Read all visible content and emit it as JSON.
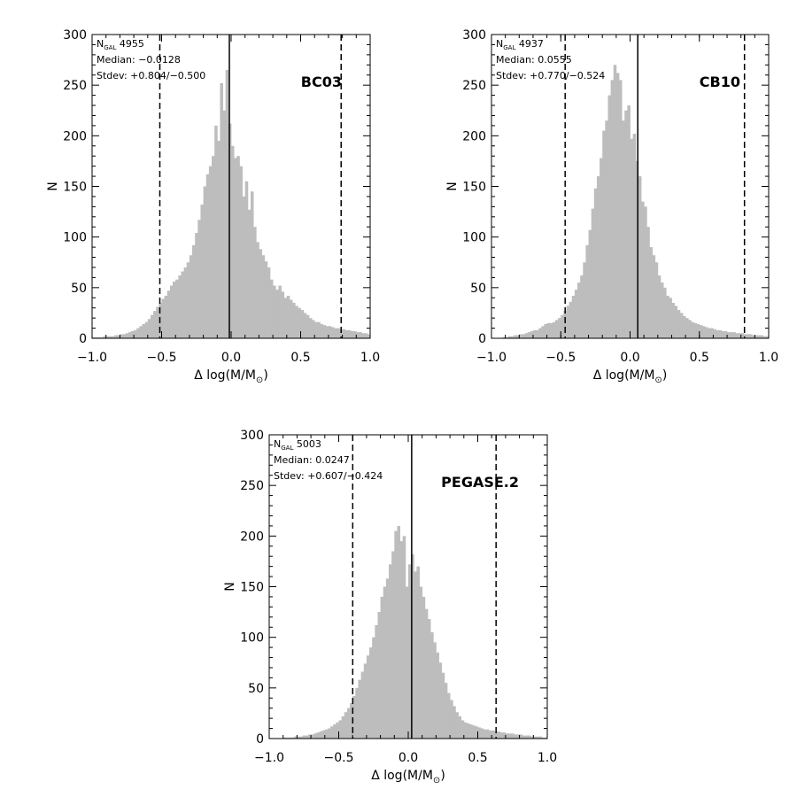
{
  "chart_data": [
    {
      "type": "bar",
      "model_label": "BC03",
      "annotations": {
        "n_gal_prefix": "N",
        "n_gal_sub": "GAL",
        "n_gal_value": "4955",
        "median": "Median: −0.0128",
        "stdev": "Stdev: +0.804/−0.500"
      },
      "xlabel_prefix": "Δ log(M/M",
      "xlabel_sub": "⊙",
      "xlabel_suffix": ")",
      "ylabel": "N",
      "xlim": [
        -1.0,
        1.0
      ],
      "ylim": [
        0,
        300
      ],
      "x_ticks": [
        "−1.0",
        "−0.5",
        "0.0",
        "0.5",
        "1.0"
      ],
      "y_ticks": [
        "0",
        "50",
        "100",
        "150",
        "200",
        "250",
        "300"
      ],
      "median_line": -0.0128,
      "stdev_lines": [
        -0.5128,
        0.7912
      ],
      "bin_start": -1.0,
      "bin_width": 0.02,
      "counts": [
        1,
        1,
        1,
        1,
        2,
        2,
        2,
        2,
        3,
        3,
        4,
        4,
        5,
        6,
        7,
        8,
        10,
        12,
        14,
        16,
        19,
        23,
        27,
        31,
        35,
        39,
        42,
        47,
        52,
        56,
        58,
        62,
        66,
        70,
        75,
        82,
        92,
        104,
        117,
        132,
        150,
        162,
        170,
        180,
        210,
        195,
        252,
        225,
        265,
        212,
        190,
        178,
        180,
        170,
        140,
        155,
        127,
        145,
        110,
        95,
        88,
        82,
        76,
        70,
        58,
        52,
        48,
        52,
        46,
        40,
        42,
        38,
        35,
        32,
        30,
        28,
        25,
        23,
        20,
        18,
        16,
        16,
        14,
        13,
        12,
        12,
        11,
        10,
        10,
        9,
        9,
        8,
        8,
        7,
        7,
        6,
        6,
        5,
        5,
        4
      ]
    },
    {
      "type": "bar",
      "model_label": "CB10",
      "annotations": {
        "n_gal_prefix": "N",
        "n_gal_sub": "GAL",
        "n_gal_value": "4937",
        "median": "Median: 0.0555",
        "stdev": "Stdev: +0.770/−0.524"
      },
      "xlabel_prefix": "Δ log(M/M",
      "xlabel_sub": "⊙",
      "xlabel_suffix": ")",
      "ylabel": "N",
      "xlim": [
        -1.0,
        1.0
      ],
      "ylim": [
        0,
        300
      ],
      "x_ticks": [
        "−1.0",
        "−0.5",
        "0.0",
        "0.5",
        "1.0"
      ],
      "y_ticks": [
        "0",
        "50",
        "100",
        "150",
        "200",
        "250",
        "300"
      ],
      "median_line": 0.0555,
      "stdev_lines": [
        -0.4685,
        0.8255
      ],
      "bin_start": -1.0,
      "bin_width": 0.02,
      "counts": [
        0,
        0,
        0,
        0,
        1,
        1,
        2,
        2,
        3,
        3,
        4,
        4,
        5,
        6,
        7,
        8,
        8,
        10,
        12,
        14,
        15,
        15,
        16,
        18,
        20,
        23,
        27,
        32,
        36,
        42,
        48,
        55,
        62,
        75,
        92,
        107,
        128,
        148,
        160,
        178,
        205,
        215,
        240,
        255,
        270,
        262,
        255,
        215,
        225,
        230,
        197,
        202,
        175,
        160,
        135,
        130,
        110,
        90,
        82,
        75,
        62,
        55,
        50,
        42,
        40,
        35,
        32,
        28,
        25,
        22,
        20,
        18,
        16,
        15,
        14,
        13,
        12,
        11,
        10,
        10,
        9,
        8,
        8,
        7,
        7,
        6,
        6,
        6,
        5,
        5,
        5,
        4,
        4,
        4,
        3,
        3,
        3,
        3,
        2,
        2
      ]
    },
    {
      "type": "bar",
      "model_label": "PEGASE.2",
      "annotations": {
        "n_gal_prefix": "N",
        "n_gal_sub": "GAL",
        "n_gal_value": "5003",
        "median": "Median: 0.0247",
        "stdev": "Stdev: +0.607/−0.424"
      },
      "xlabel_prefix": "Δ log(M/M",
      "xlabel_sub": "⊙",
      "xlabel_suffix": ")",
      "ylabel": "N",
      "xlim": [
        -1.0,
        1.0
      ],
      "ylim": [
        0,
        300
      ],
      "x_ticks": [
        "−1.0",
        "−0.5",
        "0.0",
        "0.5",
        "1.0"
      ],
      "y_ticks": [
        "0",
        "50",
        "100",
        "150",
        "200",
        "250",
        "300"
      ],
      "median_line": 0.0247,
      "stdev_lines": [
        -0.3993,
        0.6317
      ],
      "bin_start": -1.0,
      "bin_width": 0.02,
      "counts": [
        0,
        0,
        0,
        0,
        0,
        1,
        1,
        1,
        1,
        2,
        2,
        2,
        3,
        3,
        4,
        4,
        5,
        6,
        7,
        8,
        9,
        10,
        12,
        14,
        16,
        18,
        22,
        26,
        30,
        35,
        42,
        50,
        58,
        66,
        74,
        82,
        90,
        100,
        112,
        125,
        140,
        150,
        158,
        172,
        185,
        205,
        210,
        195,
        200,
        150,
        172,
        182,
        165,
        170,
        150,
        140,
        128,
        118,
        105,
        95,
        85,
        75,
        65,
        55,
        45,
        38,
        32,
        26,
        22,
        18,
        16,
        15,
        14,
        13,
        12,
        11,
        10,
        9,
        9,
        8,
        8,
        7,
        7,
        6,
        6,
        5,
        5,
        5,
        4,
        4,
        4,
        3,
        3,
        3,
        2,
        2,
        2,
        2,
        1,
        1
      ]
    }
  ]
}
